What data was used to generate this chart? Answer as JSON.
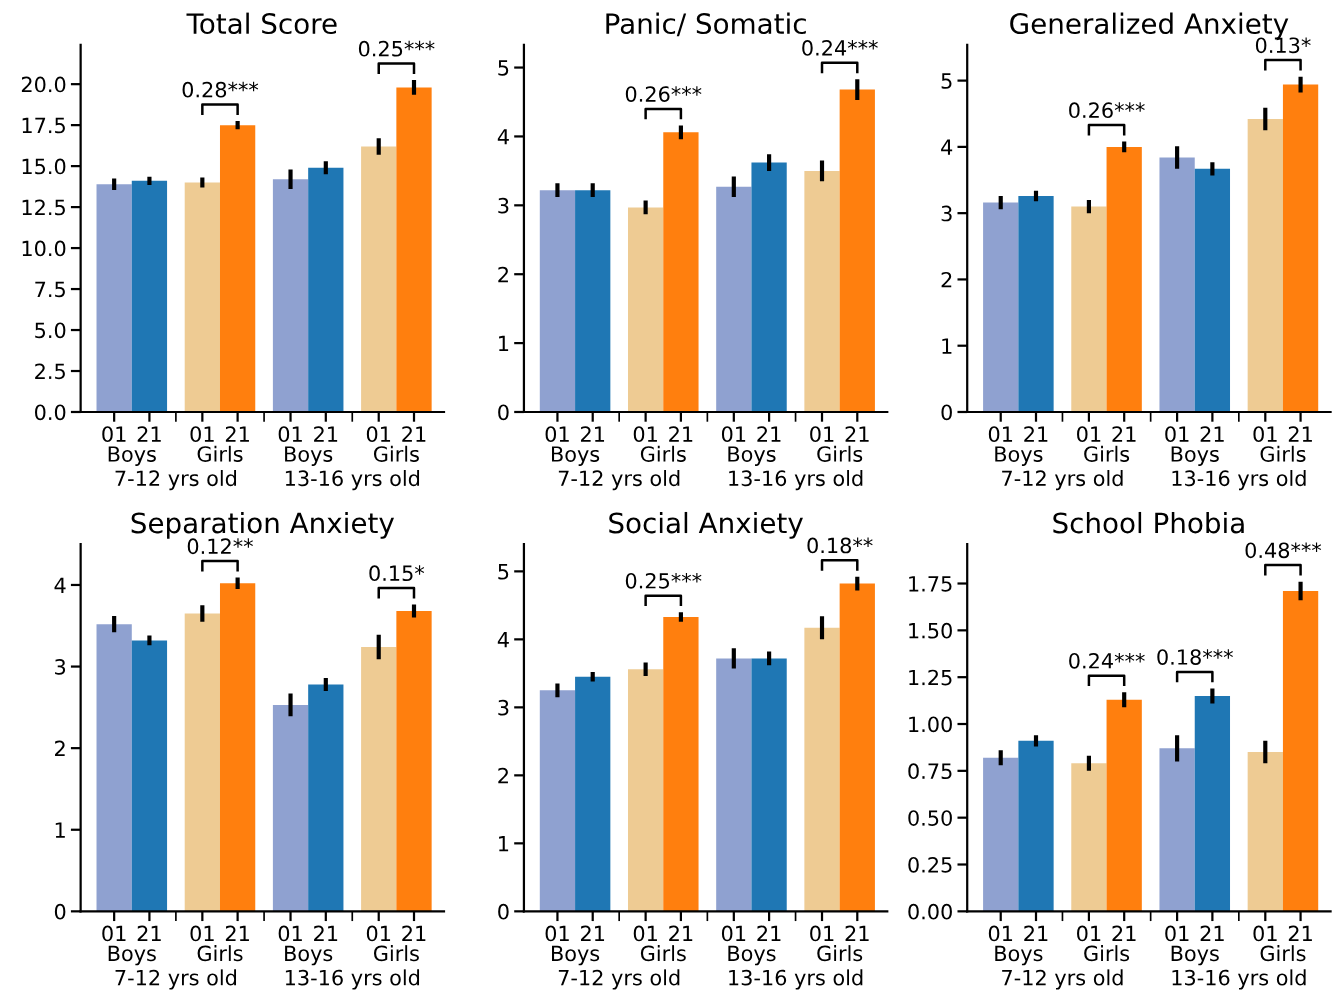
{
  "chart_data": [
    {
      "type": "bar",
      "title": "Total Score",
      "categories": [
        "01",
        "21",
        "01",
        "21",
        "01",
        "21",
        "01",
        "21"
      ],
      "colors": [
        "#8fa1d0",
        "#1f77b4",
        "#eecb93",
        "#ff7f0e",
        "#8fa1d0",
        "#1f77b4",
        "#eecb93",
        "#ff7f0e"
      ],
      "values": [
        13.9,
        14.1,
        14.0,
        17.5,
        14.2,
        14.9,
        16.2,
        19.8
      ],
      "errors": [
        0.35,
        0.25,
        0.3,
        0.25,
        0.6,
        0.4,
        0.5,
        0.45
      ],
      "ylim": [
        0,
        22.4
      ],
      "yticks": [
        {
          "value": 0,
          "label": "0.0"
        },
        2.5,
        {
          "value": 5,
          "label": "5.0"
        },
        7.5,
        {
          "value": 10,
          "label": "10.0"
        },
        12.5,
        {
          "value": 15,
          "label": "15.0"
        },
        17.5,
        {
          "value": 20,
          "label": "20.0"
        }
      ],
      "annotations": [
        "Boys",
        "Girls",
        "Boys",
        "Girls",
        "7-12 yrs old",
        "13-16 yrs old",
        "0.28***",
        "0.25***"
      ]
    },
    {
      "type": "bar",
      "title": "Panic/ Somatic",
      "categories": [
        "01",
        "21",
        "01",
        "21",
        "01",
        "21",
        "01",
        "21"
      ],
      "colors": [
        "#8fa1d0",
        "#1f77b4",
        "#eecb93",
        "#ff7f0e",
        "#8fa1d0",
        "#1f77b4",
        "#eecb93",
        "#ff7f0e"
      ],
      "values": [
        3.22,
        3.22,
        2.97,
        4.06,
        3.27,
        3.62,
        3.5,
        4.68
      ],
      "errors": [
        0.1,
        0.1,
        0.1,
        0.1,
        0.15,
        0.12,
        0.15,
        0.15
      ],
      "ylim": [
        0,
        5.33
      ],
      "yticks": [
        0,
        1,
        2,
        3,
        4,
        5
      ],
      "annotations": [
        "Boys",
        "Girls",
        "Boys",
        "Girls",
        "7-12 yrs old",
        "13-16 yrs old",
        "0.26***",
        "0.24***"
      ]
    },
    {
      "type": "bar",
      "title": "Generalized Anxiety",
      "categories": [
        "01",
        "21",
        "01",
        "21",
        "01",
        "21",
        "01",
        "21"
      ],
      "colors": [
        "#8fa1d0",
        "#1f77b4",
        "#eecb93",
        "#ff7f0e",
        "#8fa1d0",
        "#1f77b4",
        "#eecb93",
        "#ff7f0e"
      ],
      "values": [
        3.16,
        3.26,
        3.1,
        4.0,
        3.84,
        3.67,
        4.42,
        4.94
      ],
      "errors": [
        0.1,
        0.08,
        0.1,
        0.08,
        0.17,
        0.1,
        0.17,
        0.12
      ],
      "ylim": [
        0,
        5.54
      ],
      "yticks": [
        0,
        1,
        2,
        3,
        4,
        5
      ],
      "annotations": [
        "Boys",
        "Girls",
        "Boys",
        "Girls",
        "7-12 yrs old",
        "13-16 yrs old",
        "0.26***",
        "0.13*"
      ]
    },
    {
      "type": "bar",
      "title": "Separation Anxiety",
      "categories": [
        "01",
        "21",
        "01",
        "21",
        "01",
        "21",
        "01",
        "21"
      ],
      "colors": [
        "#8fa1d0",
        "#1f77b4",
        "#eecb93",
        "#ff7f0e",
        "#8fa1d0",
        "#1f77b4",
        "#eecb93",
        "#ff7f0e"
      ],
      "values": [
        3.52,
        3.32,
        3.65,
        4.02,
        2.53,
        2.78,
        3.24,
        3.68
      ],
      "errors": [
        0.1,
        0.06,
        0.1,
        0.07,
        0.14,
        0.08,
        0.15,
        0.08
      ],
      "ylim": [
        0,
        4.5
      ],
      "yticks": [
        0,
        1,
        2,
        3,
        4
      ],
      "annotations": [
        "Boys",
        "Girls",
        "Boys",
        "Girls",
        "7-12 yrs old",
        "13-16 yrs old",
        "0.12**",
        "0.15*"
      ]
    },
    {
      "type": "bar",
      "title": "Social Anxiety",
      "categories": [
        "01",
        "21",
        "01",
        "21",
        "01",
        "21",
        "01",
        "21"
      ],
      "colors": [
        "#8fa1d0",
        "#1f77b4",
        "#eecb93",
        "#ff7f0e",
        "#8fa1d0",
        "#1f77b4",
        "#eecb93",
        "#ff7f0e"
      ],
      "values": [
        3.25,
        3.45,
        3.56,
        4.33,
        3.72,
        3.72,
        4.17,
        4.82
      ],
      "errors": [
        0.1,
        0.07,
        0.1,
        0.07,
        0.15,
        0.1,
        0.17,
        0.1
      ],
      "ylim": [
        0,
        5.4
      ],
      "yticks": [
        0,
        1,
        2,
        3,
        4,
        5
      ],
      "annotations": [
        "Boys",
        "Girls",
        "Boys",
        "Girls",
        "7-12 yrs old",
        "13-16 yrs old",
        "0.25***",
        "0.18**"
      ]
    },
    {
      "type": "bar",
      "title": "School Phobia",
      "categories": [
        "01",
        "21",
        "01",
        "21",
        "01",
        "21",
        "01",
        "21"
      ],
      "colors": [
        "#8fa1d0",
        "#1f77b4",
        "#eecb93",
        "#ff7f0e",
        "#8fa1d0",
        "#1f77b4",
        "#eecb93",
        "#ff7f0e"
      ],
      "values": [
        0.82,
        0.91,
        0.79,
        1.13,
        0.87,
        1.15,
        0.85,
        1.71
      ],
      "errors": [
        0.04,
        0.03,
        0.04,
        0.04,
        0.07,
        0.04,
        0.06,
        0.05
      ],
      "ylim": [
        0,
        1.96
      ],
      "yticks": [
        {
          "value": 0,
          "label": "0.00"
        },
        0.25,
        {
          "value": 0.5,
          "label": "0.50"
        },
        0.75,
        {
          "value": 1,
          "label": "1.00"
        },
        1.25,
        {
          "value": 1.5,
          "label": "1.50"
        },
        1.75
      ],
      "annotations": [
        "Boys",
        "Girls",
        "Boys",
        "Girls",
        "7-12 yrs old",
        "13-16 yrs old",
        "0.24***",
        "0.18***",
        "0.48***"
      ]
    }
  ]
}
